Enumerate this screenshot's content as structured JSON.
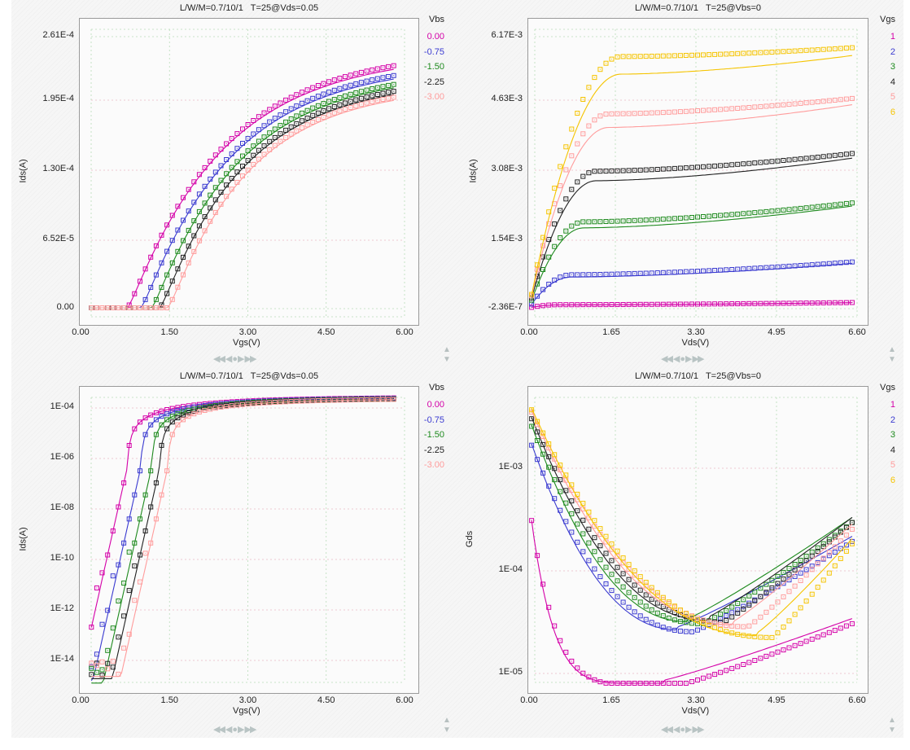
{
  "colors": {
    "series_5": [
      "#d400a8",
      "#3a3ad0",
      "#1e8a1e",
      "#222222",
      "#ff9c9c"
    ],
    "series_6": [
      "#d400a8",
      "#3a3ad0",
      "#1e8a1e",
      "#222222",
      "#ff9c9c",
      "#f5c400"
    ]
  },
  "navigation": {
    "first": "◀◀",
    "prev": "◀",
    "home": "●",
    "next": "▶",
    "last": "▶▶",
    "scroll_up": "▲",
    "scroll_down": "▼"
  },
  "chart_data": [
    {
      "id": "idvg-linear",
      "type": "scatter+line",
      "title": "L/W/M=0.7/10/1   T=25@Vds=0.05",
      "xlabel": "Vgs(V)",
      "ylabel": "Ids(A)",
      "xlim": [
        0,
        6
      ],
      "ylim": [
        0,
        0.000261
      ],
      "yscale": "linear",
      "xticks": [
        "0.00",
        "1.50",
        "3.00",
        "4.50",
        "6.00"
      ],
      "yticks": [
        "2.61E-4",
        "1.95E-4",
        "1.30E-4",
        "6.52E-5",
        "0.00"
      ],
      "ytick_values": [
        0.000261,
        0.000195,
        0.00013,
        6.52e-05,
        0
      ],
      "grid": true,
      "legend": {
        "title": "Vbs",
        "position": "right",
        "entries": [
          "0.00",
          "-0.75",
          "-1.50",
          "-2.25",
          "-3.00"
        ]
      },
      "series": [
        {
          "name": "0.00",
          "vth": 0.85,
          "ymax": 0.000253
        },
        {
          "name": "-0.75",
          "vth": 1.1,
          "ymax": 0.000243
        },
        {
          "name": "-1.50",
          "vth": 1.3,
          "ymax": 0.000234
        },
        {
          "name": "-2.25",
          "vth": 1.45,
          "ymax": 0.000227
        },
        {
          "name": "-3.00",
          "vth": 1.6,
          "ymax": 0.000221
        }
      ]
    },
    {
      "id": "idvd",
      "type": "scatter+line",
      "title": "L/W/M=0.7/10/1   T=25@Vbs=0",
      "xlabel": "Vds(V)",
      "ylabel": "Ids(A)",
      "xlim": [
        0,
        6.6
      ],
      "ylim": [
        -2.36e-07,
        0.00617
      ],
      "yscale": "linear",
      "xticks": [
        "0.00",
        "1.65",
        "3.30",
        "4.95",
        "6.60"
      ],
      "yticks": [
        "6.17E-3",
        "4.63E-3",
        "3.08E-3",
        "1.54E-3",
        "-2.36E-7"
      ],
      "ytick_values": [
        0.00617,
        0.00463,
        0.00308,
        0.00154,
        -2.36e-07
      ],
      "grid": true,
      "legend": {
        "title": "Vgs",
        "position": "right",
        "entries": [
          "1",
          "2",
          "3",
          "4",
          "5",
          "6"
        ]
      },
      "series": [
        {
          "name": "1",
          "isat_meas": 7e-05,
          "iend_meas": 0.00012
        },
        {
          "name": "2",
          "isat_meas": 0.00075,
          "iend_meas": 0.00104
        },
        {
          "name": "3",
          "isat_meas": 0.00195,
          "iend_meas": 0.00238
        },
        {
          "name": "4",
          "isat_meas": 0.0031,
          "iend_meas": 0.0035
        },
        {
          "name": "5",
          "isat_meas": 0.0044,
          "iend_meas": 0.00475
        },
        {
          "name": "6",
          "isat_meas": 0.0057,
          "iend_meas": 0.0059
        }
      ]
    },
    {
      "id": "idvg-log",
      "type": "scatter+line",
      "title": "L/W/M=0.7/10/1   T=25@Vds=0.05",
      "xlabel": "Vgs(V)",
      "ylabel": "Ids(A)",
      "xlim": [
        0,
        6
      ],
      "ylim": [
        1e-15,
        0.0003
      ],
      "yscale": "log",
      "xticks": [
        "0.00",
        "1.50",
        "3.00",
        "4.50",
        "6.00"
      ],
      "yticks": [
        "1E-04",
        "1E-06",
        "1E-08",
        "1E-10",
        "1E-12",
        "1E-14"
      ],
      "ytick_values": [
        0.0001,
        1e-06,
        1e-08,
        1e-10,
        1e-12,
        1e-14
      ],
      "grid": true,
      "legend": {
        "title": "Vbs",
        "position": "right",
        "entries": [
          "0.00",
          "-0.75",
          "-1.50",
          "-2.25",
          "-3.00"
        ]
      },
      "series": [
        {
          "name": "0.00",
          "vth": 0.85,
          "ymax": 0.000253
        },
        {
          "name": "-0.75",
          "vth": 1.1,
          "ymax": 0.000243
        },
        {
          "name": "-1.50",
          "vth": 1.3,
          "ymax": 0.000234
        },
        {
          "name": "-2.25",
          "vth": 1.45,
          "ymax": 0.000227
        },
        {
          "name": "-3.00",
          "vth": 1.6,
          "ymax": 0.000221
        }
      ]
    },
    {
      "id": "gds-vd",
      "type": "scatter+line",
      "title": "L/W/M=0.7/10/1   T=25@Vbs=0",
      "xlabel": "Vds(V)",
      "ylabel": "Gds",
      "xlim": [
        0,
        6.6
      ],
      "ylim": [
        5e-06,
        0.0045
      ],
      "yscale": "log",
      "xticks": [
        "0.00",
        "1.65",
        "3.30",
        "4.95",
        "6.60"
      ],
      "yticks": [
        "1E-03",
        "1E-04",
        "1E-05"
      ],
      "ytick_values": [
        0.001,
        0.0001,
        1e-05
      ],
      "grid": true,
      "legend": {
        "title": "Vgs",
        "position": "right",
        "entries": [
          "1",
          "2",
          "3",
          "4",
          "5",
          "6"
        ]
      },
      "series": [
        {
          "name": "1",
          "start": 0.00045,
          "min": 7.5e-06,
          "vmin": 3.0,
          "end": 3e-05
        },
        {
          "name": "2",
          "start": 0.0019,
          "min": 2.5e-05,
          "vmin": 3.3,
          "end": 0.00019
        },
        {
          "name": "3",
          "start": 0.0029,
          "min": 3e-05,
          "vmin": 3.5,
          "end": 0.00029
        },
        {
          "name": "4",
          "start": 0.0034,
          "min": 3.1e-05,
          "vmin": 3.9,
          "end": 0.00029
        },
        {
          "name": "5",
          "start": 0.0039,
          "min": 2.8e-05,
          "vmin": 4.4,
          "end": 0.00025
        },
        {
          "name": "6",
          "start": 0.0041,
          "min": 2.2e-05,
          "vmin": 4.9,
          "end": 0.00018
        }
      ]
    }
  ]
}
